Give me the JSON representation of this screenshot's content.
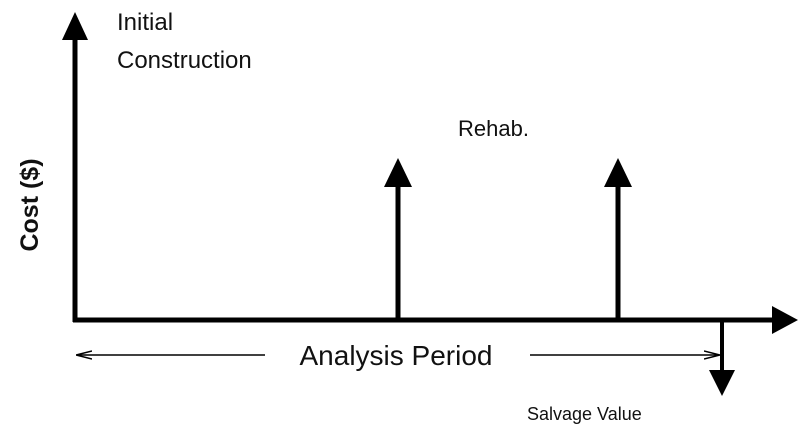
{
  "axes": {
    "y_label": "Cost ($)",
    "x_label": "Analysis Period"
  },
  "events": {
    "initial_construction": [
      "Initial",
      "Construction"
    ],
    "rehab": "Rehab.",
    "salvage": "Salvage Value"
  }
}
